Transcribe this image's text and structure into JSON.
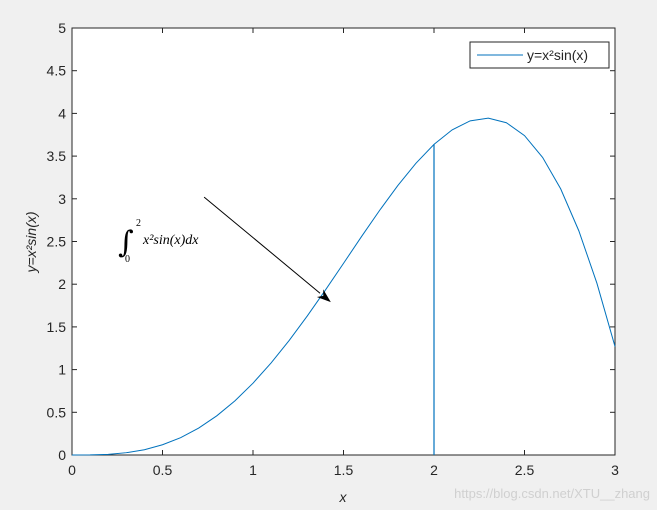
{
  "chart_data": {
    "type": "line",
    "xlabel": "x",
    "ylabel": "y=x²sin(x)",
    "x": [
      0,
      0.1,
      0.2,
      0.3,
      0.4,
      0.5,
      0.6,
      0.7,
      0.8,
      0.9,
      1.0,
      1.1,
      1.2,
      1.3,
      1.4,
      1.5,
      1.6,
      1.7,
      1.8,
      1.9,
      2.0,
      2.1,
      2.2,
      2.3,
      2.4,
      2.5,
      2.6,
      2.7,
      2.8,
      2.9,
      3.0
    ],
    "series": [
      {
        "name": "y=x²sin(x)",
        "color": "#0072bd",
        "values": [
          0,
          0.001,
          0.008,
          0.027,
          0.062,
          0.12,
          0.203,
          0.316,
          0.459,
          0.634,
          0.841,
          1.078,
          1.342,
          1.628,
          1.931,
          2.244,
          2.559,
          2.866,
          3.155,
          3.416,
          3.637,
          3.807,
          3.913,
          3.945,
          3.891,
          3.74,
          3.485,
          3.116,
          2.626,
          2.012,
          1.27
        ]
      }
    ],
    "vline": {
      "color": "#0072bd",
      "x": [
        2,
        2
      ],
      "values": [
        0,
        3.637
      ]
    },
    "xlim": [
      0,
      3
    ],
    "ylim": [
      0,
      5
    ],
    "xticks": [
      0,
      0.5,
      1,
      1.5,
      2,
      2.5,
      3
    ],
    "yticks": [
      0,
      0.5,
      1,
      1.5,
      2,
      2.5,
      3,
      3.5,
      4,
      4.5,
      5
    ],
    "legend": "northeast",
    "annotation": {
      "integral": "∫",
      "lower": "0",
      "upper": "2",
      "integrand": "x²sin(x)dx",
      "arrow": {
        "x": [
          0.73,
          1.43
        ],
        "y": [
          3.02,
          1.79
        ]
      }
    },
    "watermark": "https://blog.csdn.net/XTU__zhang"
  }
}
